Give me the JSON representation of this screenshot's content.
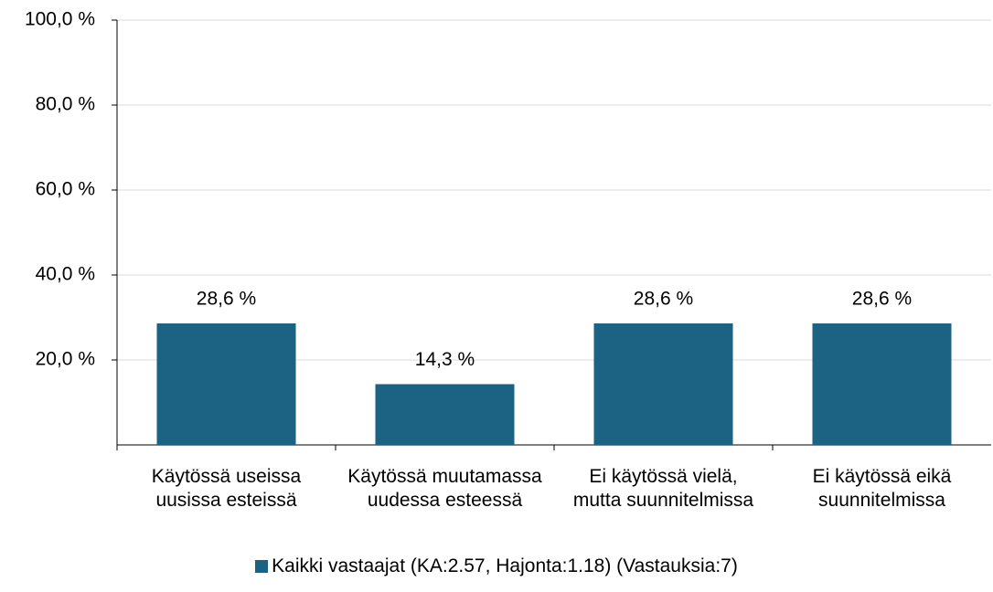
{
  "chart_data": {
    "type": "bar",
    "categories": [
      "Käytössä useissa uusissa esteissä",
      "Käytössä muutamassa uudessa esteessä",
      "Ei käytössä vielä, mutta suunnitelmissa",
      "Ei käytössä eikä suunnitelmissa"
    ],
    "series": [
      {
        "name": "Kaikki vastaajat (KA:2.57, Hajonta:1.18) (Vastauksia:7)",
        "color": "#1b6283",
        "values": [
          28.6,
          14.3,
          28.6,
          28.6
        ],
        "value_labels": [
          "28,6 %",
          "14,3 %",
          "28,6 %",
          "28,6 %"
        ]
      }
    ],
    "ylim": [
      0,
      100
    ],
    "yticks": [
      {
        "value": 20,
        "label": "20,0 %"
      },
      {
        "value": 40,
        "label": "40,0 %"
      },
      {
        "value": 60,
        "label": "60,0 %"
      },
      {
        "value": 80,
        "label": "80,0 %"
      },
      {
        "value": 100,
        "label": "100,0 %"
      }
    ],
    "grid": true,
    "legend": "bottom"
  }
}
